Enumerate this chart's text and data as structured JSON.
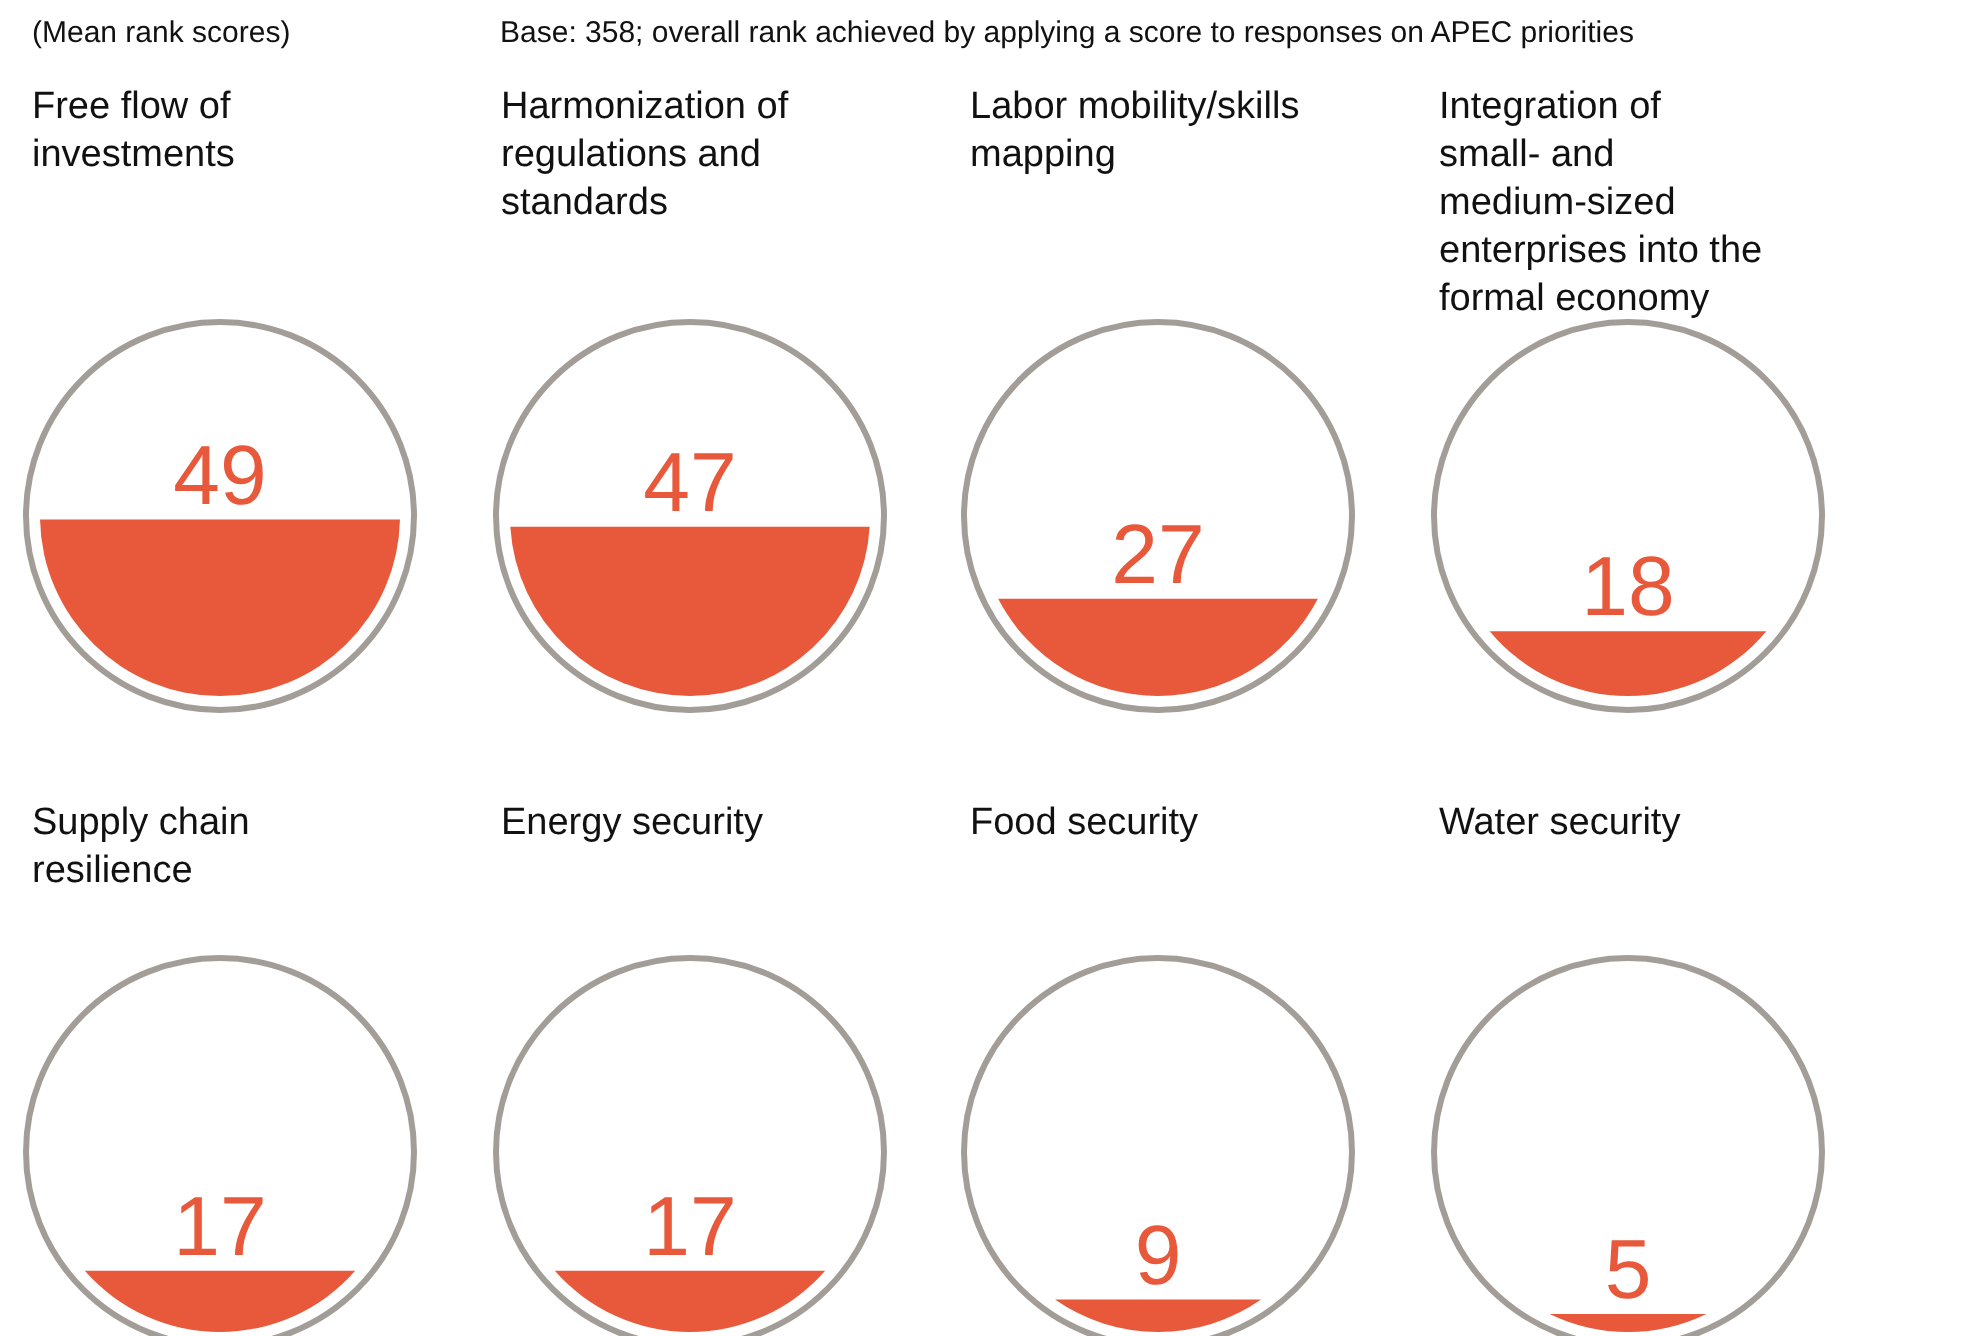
{
  "chart_data": {
    "type": "other",
    "title": "(Mean rank scores)",
    "annotations": [
      "Base: 358;  overall rank achieved by applying a score to responses on APEC priorities"
    ],
    "categories": [
      "Free flow of investments",
      "Harmonization of regulations and standards",
      "Labor mobility/skills mapping",
      "Integration of small- and medium-sized enterprises into the formal economy",
      "Supply chain resilience",
      "Energy security",
      "Food security",
      "Water security"
    ],
    "values": [
      49,
      47,
      27,
      18,
      17,
      17,
      9,
      5
    ],
    "color": "#e8583a",
    "data_labels": true
  }
}
